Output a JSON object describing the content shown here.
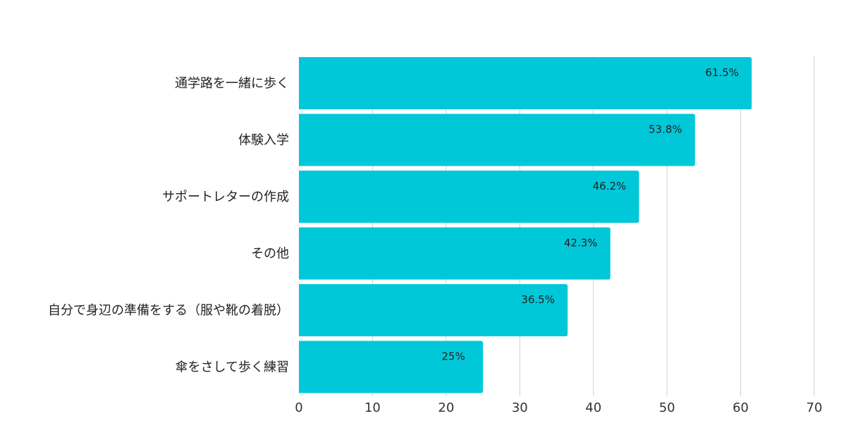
{
  "chart_data": {
    "type": "bar",
    "orientation": "horizontal",
    "categories": [
      "通学路を一緒に歩く",
      "体験入学",
      "サポートレターの作成",
      "その他",
      "自分で身辺の準備をする（服や靴の着脱）",
      "傘をさして歩く練習"
    ],
    "values": [
      61.5,
      53.8,
      46.2,
      42.3,
      36.5,
      25
    ],
    "value_labels": [
      "61.5%",
      "53.8%",
      "46.2%",
      "42.3%",
      "36.5%",
      "25%"
    ],
    "xlim": [
      0,
      70
    ],
    "xticks": [
      0,
      10,
      20,
      30,
      40,
      50,
      60,
      70
    ],
    "xtick_labels": [
      "0",
      "10",
      "20",
      "30",
      "40",
      "50",
      "60",
      "70"
    ],
    "grid": true,
    "legend": "none",
    "bar_color": "#00c8d9",
    "grid_color": "#d0d0d0"
  }
}
